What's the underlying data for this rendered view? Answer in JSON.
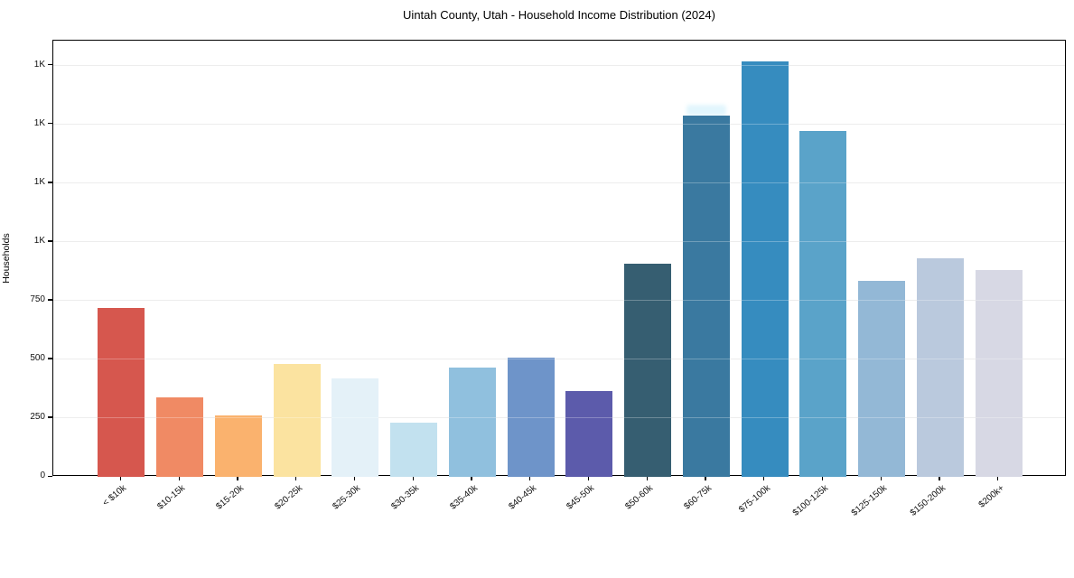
{
  "chart_data": {
    "type": "bar",
    "title": "Uintah County, Utah - Household Income Distribution (2024)",
    "xlabel": "",
    "ylabel": "Households",
    "categories": [
      "< $10k",
      "$10-15k",
      "$15-20k",
      "$20-25k",
      "$25-30k",
      "$30-35k",
      "$35-40k",
      "$40-45k",
      "$45-50k",
      "$50-60k",
      "$60-75k",
      "$75-100k",
      "$100-125k",
      "$125-150k",
      "$150-200k",
      "$200k+"
    ],
    "values": [
      720,
      340,
      261,
      481,
      419,
      231,
      465,
      508,
      365,
      908,
      1536,
      1768,
      1470,
      835,
      931,
      881
    ],
    "bar_colors": [
      "#d6574e",
      "#f08a64",
      "#fab26e",
      "#fbe3a0",
      "#e4f1f8",
      "#c2e1ef",
      "#90c0de",
      "#6e94c9",
      "#5c5bab",
      "#365e71",
      "#3a79a0",
      "#368cbf",
      "#5aa3c9",
      "#93b8d6",
      "#bac9dd",
      "#d7d8e4"
    ],
    "ylim": [
      0,
      1856
    ],
    "yticks": [
      {
        "value": 0,
        "label": "0"
      },
      {
        "value": 250,
        "label": "250"
      },
      {
        "value": 500,
        "label": "500"
      },
      {
        "value": 750,
        "label": "750"
      },
      {
        "value": 1000,
        "label": "1K"
      },
      {
        "value": 1250,
        "label": "1K"
      },
      {
        "value": 1500,
        "label": "1K"
      },
      {
        "value": 1750,
        "label": "1K"
      }
    ],
    "grid": "horizontal",
    "legend": "none",
    "background_color": "#ffffff",
    "grid_color": "#e7e7e7",
    "spine_color": "#000000",
    "top_glow": {
      "bar_index": 10,
      "color": "#e2f6fd"
    }
  }
}
